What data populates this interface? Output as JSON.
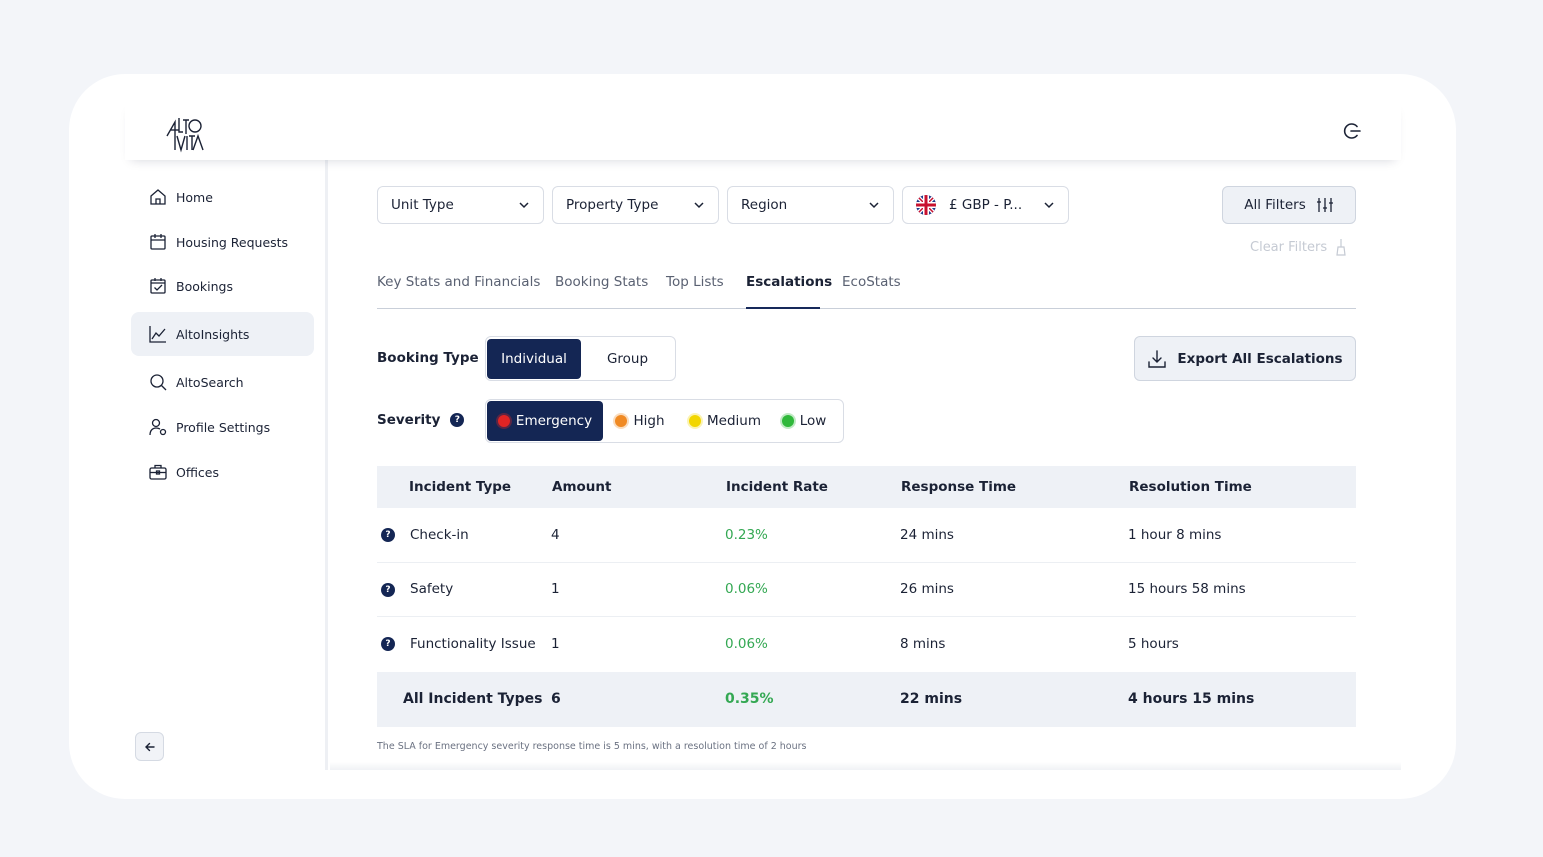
{
  "brand": {
    "logo": "Alto Vita logo"
  },
  "colors": {
    "accent": "#142654",
    "positive": "#34a853",
    "emergency": "#e02424",
    "high": "#f08a24",
    "medium": "#f2d600",
    "low": "#2fb83a"
  },
  "header": {
    "logout_icon": "logout-icon"
  },
  "sidebar": {
    "items": [
      {
        "label": "Home",
        "icon": "home-icon"
      },
      {
        "label": "Housing Requests",
        "icon": "calendar-icon"
      },
      {
        "label": "Bookings",
        "icon": "calendar-check-icon"
      },
      {
        "label": "AltoInsights",
        "icon": "chart-line-icon",
        "active": true
      },
      {
        "label": "AltoSearch",
        "icon": "search-icon"
      },
      {
        "label": "Profile Settings",
        "icon": "user-settings-icon"
      },
      {
        "label": "Offices",
        "icon": "briefcase-icon"
      }
    ],
    "collapse_icon": "arrow-left-icon"
  },
  "filters": {
    "unit_type": "Unit Type",
    "property_type": "Property Type",
    "region": "Region",
    "currency": "£ GBP - P...",
    "currency_flag": "uk-flag-icon",
    "all_filters": "All Filters",
    "clear_filters": "Clear Filters"
  },
  "tabs": [
    {
      "label": "Key Stats and Financials"
    },
    {
      "label": "Booking Stats"
    },
    {
      "label": "Top Lists"
    },
    {
      "label": "Escalations",
      "active": true
    },
    {
      "label": "EcoStats"
    }
  ],
  "booking_type": {
    "label": "Booking Type",
    "options": [
      "Individual",
      "Group"
    ],
    "selected": "Individual"
  },
  "severity": {
    "label": "Severity",
    "options": [
      "Emergency",
      "High",
      "Medium",
      "Low"
    ],
    "selected": "Emergency"
  },
  "export_button": "Export All Escalations",
  "table": {
    "columns": [
      "Incident Type",
      "Amount",
      "Incident Rate",
      "Response Time",
      "Resolution Time"
    ],
    "rows": [
      {
        "type": "Check-in",
        "amount": "4",
        "rate": "0.23%",
        "response": "24 mins",
        "resolution": "1 hour 8 mins"
      },
      {
        "type": "Safety",
        "amount": "1",
        "rate": "0.06%",
        "response": "26 mins",
        "resolution": "15 hours 58 mins"
      },
      {
        "type": "Functionality Issue",
        "amount": "1",
        "rate": "0.06%",
        "response": "8 mins",
        "resolution": "5 hours"
      }
    ],
    "total": {
      "type": "All Incident Types",
      "amount": "6",
      "rate": "0.35%",
      "response": "22 mins",
      "resolution": "4 hours 15 mins"
    }
  },
  "footnote": "The SLA for Emergency severity response time is 5 mins, with a resolution time of 2 hours"
}
